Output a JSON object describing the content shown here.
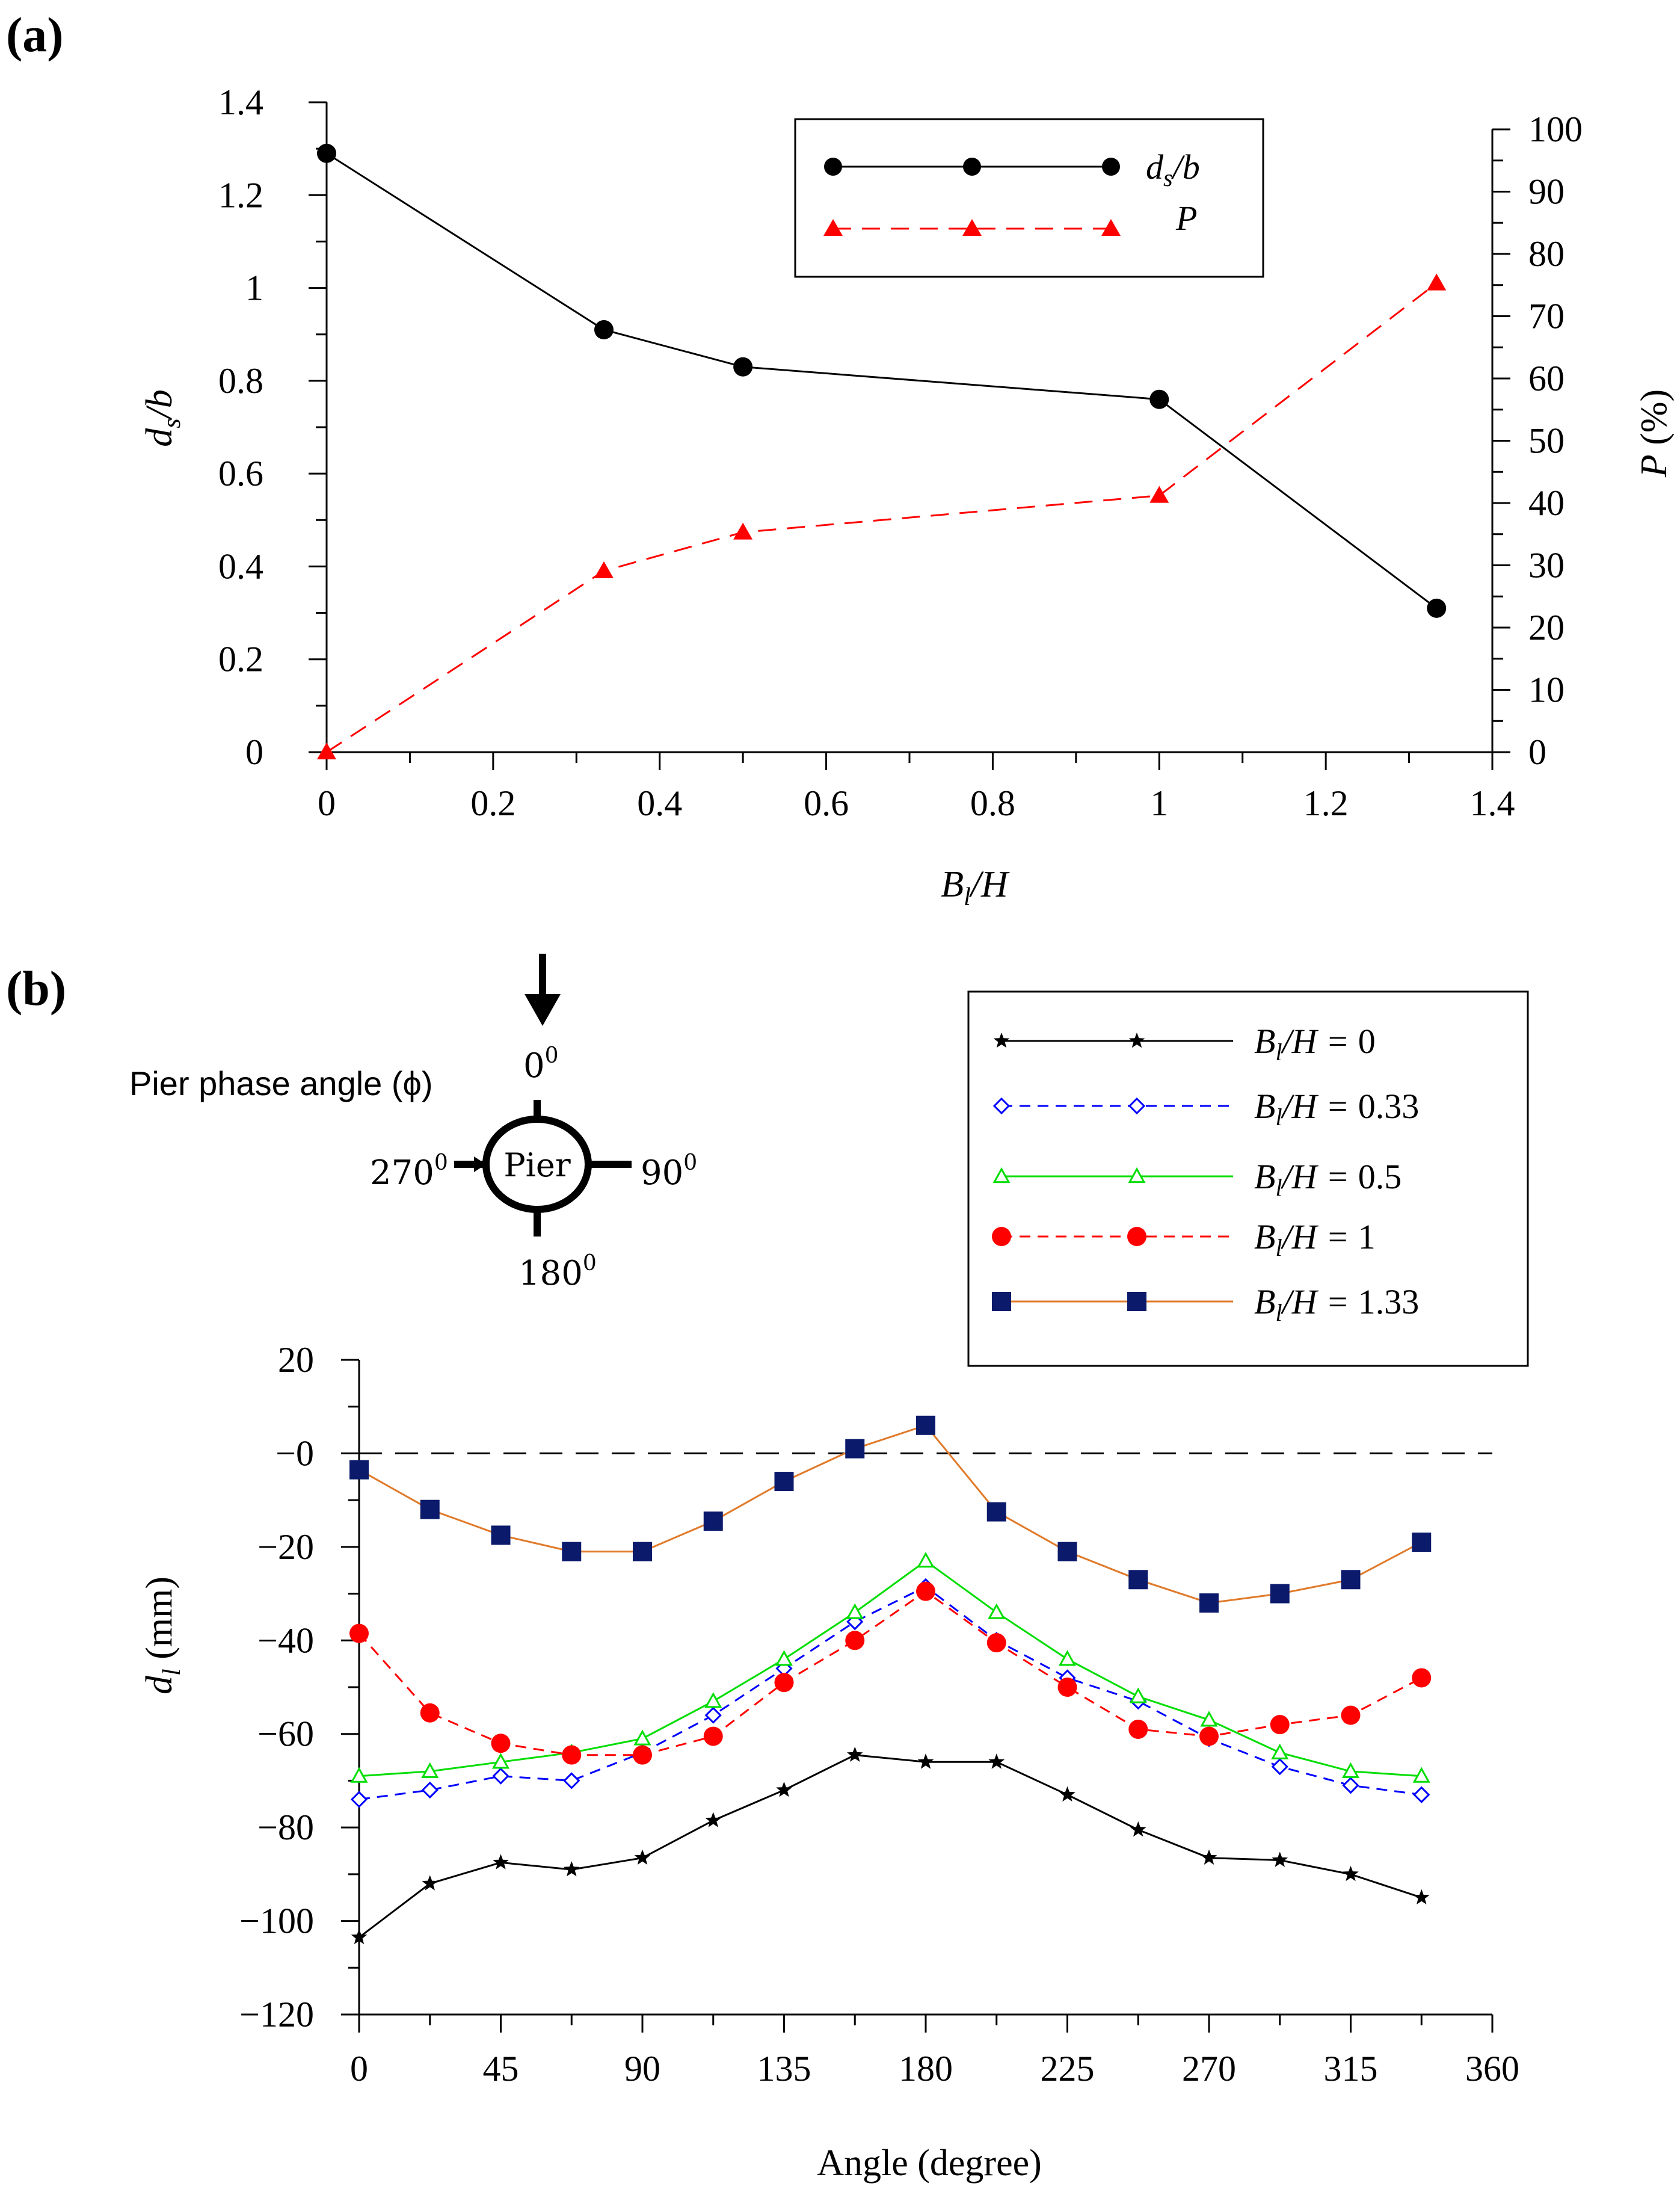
{
  "chart_data": [
    {
      "panel_label": "(a)",
      "type": "line",
      "xlabel": "B_l/H",
      "ylabel_left": "d_s/b",
      "ylabel_right": "P (%)",
      "xlim": [
        0,
        1.4
      ],
      "ylim_left": [
        0,
        1.4
      ],
      "ylim_right": [
        0,
        100
      ],
      "xticks": [
        "0",
        "0.2",
        "0.4",
        "0.6",
        "0.8",
        "1",
        "1.2",
        "1.4"
      ],
      "yticks_left": [
        "0",
        "0.2",
        "0.4",
        "0.6",
        "0.8",
        "1",
        "1.2",
        "1.4"
      ],
      "yticks_right": [
        "0",
        "10",
        "20",
        "30",
        "40",
        "50",
        "60",
        "70",
        "80",
        "90",
        "100"
      ],
      "x": [
        0,
        0.333,
        0.5,
        1,
        1.333
      ],
      "series": [
        {
          "name": "d_s/b",
          "axis": "left",
          "color": "#000000",
          "marker": "circle",
          "dash": false,
          "values": [
            1.29,
            0.91,
            0.83,
            0.76,
            0.31
          ]
        },
        {
          "name": "P",
          "axis": "right",
          "color": "#ff0000",
          "marker": "triangle",
          "dash": true,
          "values": [
            0,
            29.1,
            35.3,
            41.2,
            75.3
          ]
        }
      ],
      "legend_position": "top-right"
    },
    {
      "panel_label": "(b)",
      "type": "line",
      "xlabel": "Angle (degree)",
      "ylabel": "d_l (mm)",
      "xlim": [
        0,
        360
      ],
      "ylim": [
        -120,
        20
      ],
      "xticks": [
        "0",
        "45",
        "90",
        "135",
        "180",
        "225",
        "270",
        "315",
        "360"
      ],
      "yticks": [
        "20",
        "−0",
        "−20",
        "−40",
        "−60",
        "−80",
        "−100",
        "−120"
      ],
      "reference_line": 0,
      "x": [
        0,
        22.5,
        45,
        67.5,
        90,
        112.5,
        135,
        157.5,
        180,
        202.5,
        225,
        247.5,
        270,
        292.5,
        315,
        337.5
      ],
      "series": [
        {
          "name": "B_l/H = 0",
          "color": "#000000",
          "marker": "star",
          "dash": false,
          "values": [
            -103.5,
            -92,
            -87.5,
            -89,
            -86.5,
            -78.5,
            -72,
            -64.5,
            -66,
            -66,
            -73,
            -80.5,
            -86.5,
            -87,
            -90,
            -95
          ]
        },
        {
          "name": "B_l/H = 0.33",
          "color": "#0000ff",
          "marker": "diamond",
          "dash": true,
          "values": [
            -74,
            -72,
            -69,
            -70,
            -64,
            -56,
            -46,
            -36,
            -28.5,
            -40,
            -48,
            -53,
            -61,
            -67,
            -71,
            -73
          ]
        },
        {
          "name": "B_l/H = 0.5",
          "color": "#00dd00",
          "marker": "triangle-open",
          "dash": false,
          "values": [
            -69,
            -68,
            -66,
            -64,
            -61,
            -53,
            -44,
            -34,
            -23,
            -34,
            -44,
            -52,
            -57,
            -64,
            -68,
            -69
          ]
        },
        {
          "name": "B_l/H = 1",
          "color": "#ff0000",
          "marker": "circle",
          "dash": true,
          "values": [
            -38.5,
            -55.5,
            -62,
            -64.5,
            -64.5,
            -60.5,
            -49,
            -40,
            -29.5,
            -40.5,
            -50,
            -59,
            -60.5,
            -58,
            -56,
            -48
          ]
        },
        {
          "name": "B_l/H = 1.33",
          "color": "#0b1a6b",
          "marker": "square",
          "dash": false,
          "line_color": "#e07a2a",
          "values": [
            -3.5,
            -12,
            -17.5,
            -21,
            -21,
            -14.5,
            -6,
            1,
            6,
            -12.5,
            -21,
            -27,
            -32,
            -30,
            -27,
            -19
          ]
        }
      ],
      "legend_position": "top-right"
    }
  ],
  "diagram": {
    "title": "Pier phase angle (ϕ)",
    "pier_label": "Pier",
    "angle_0": "0",
    "angle_90": "90",
    "angle_180": "180",
    "angle_270": "270",
    "degree_mark": "0"
  }
}
